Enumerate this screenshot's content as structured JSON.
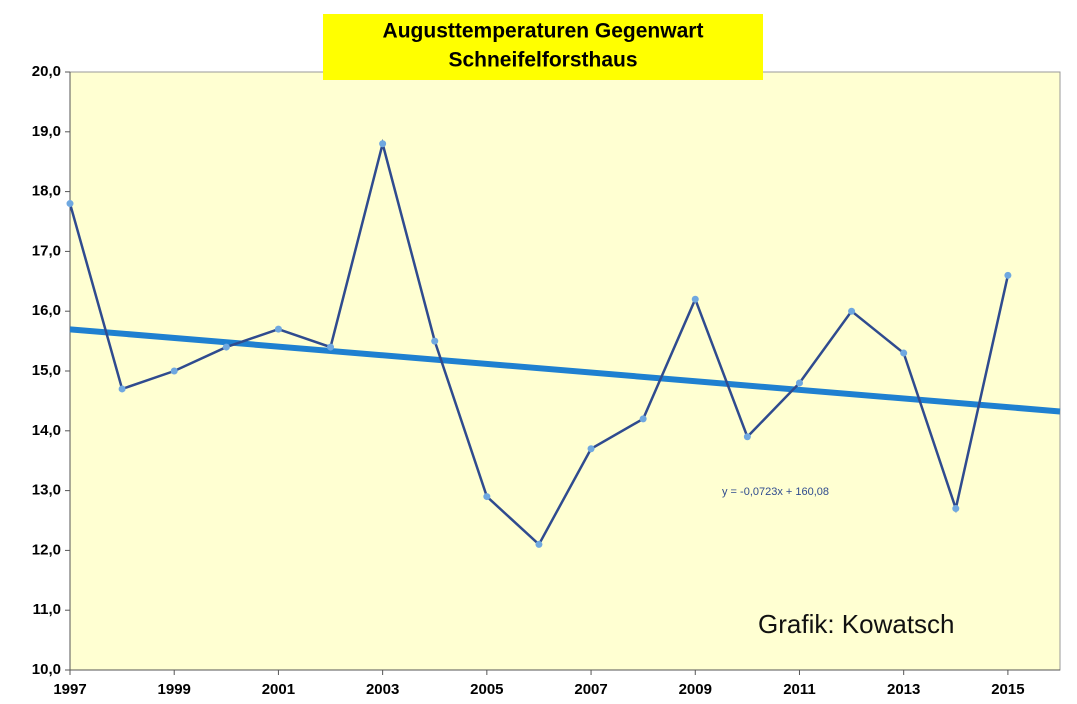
{
  "chart_data": {
    "type": "line",
    "title": [
      "Augusttemperaturen Gegenwart",
      "Schneifelforsthaus"
    ],
    "x": [
      1997,
      1998,
      1999,
      2000,
      2001,
      2002,
      2003,
      2004,
      2005,
      2006,
      2007,
      2008,
      2009,
      2010,
      2011,
      2012,
      2013,
      2014,
      2015
    ],
    "values": [
      17.8,
      14.7,
      15.0,
      15.4,
      15.7,
      15.4,
      18.8,
      15.5,
      12.9,
      12.1,
      13.7,
      14.2,
      16.2,
      13.9,
      14.8,
      16.0,
      15.3,
      12.7,
      16.6
    ],
    "color": "#2f4b8f",
    "marker_color": "#6fa8e0",
    "xlim": [
      1997,
      2016
    ],
    "xticks": [
      1997,
      1999,
      2001,
      2003,
      2005,
      2007,
      2009,
      2011,
      2013,
      2015
    ],
    "ylim": [
      10,
      20
    ],
    "yticks": [
      {
        "value": 10,
        "label": "10,0"
      },
      {
        "value": 11,
        "label": "11,0"
      },
      {
        "value": 12,
        "label": "12,0"
      },
      {
        "value": 13,
        "label": "13,0"
      },
      {
        "value": 14,
        "label": "14,0"
      },
      {
        "value": 15,
        "label": "15,0"
      },
      {
        "value": 16,
        "label": "16,0"
      },
      {
        "value": 17,
        "label": "17,0"
      },
      {
        "value": 18,
        "label": "18,0"
      },
      {
        "value": 19,
        "label": "19,0"
      },
      {
        "value": 20,
        "label": "20,0"
      }
    ],
    "trendline": {
      "slope": -0.0723,
      "intercept": 160.08,
      "label": "y = -0,0723x + 160,08",
      "color": "#1f80d0"
    },
    "annotation": "Grafik: Kowatsch"
  }
}
